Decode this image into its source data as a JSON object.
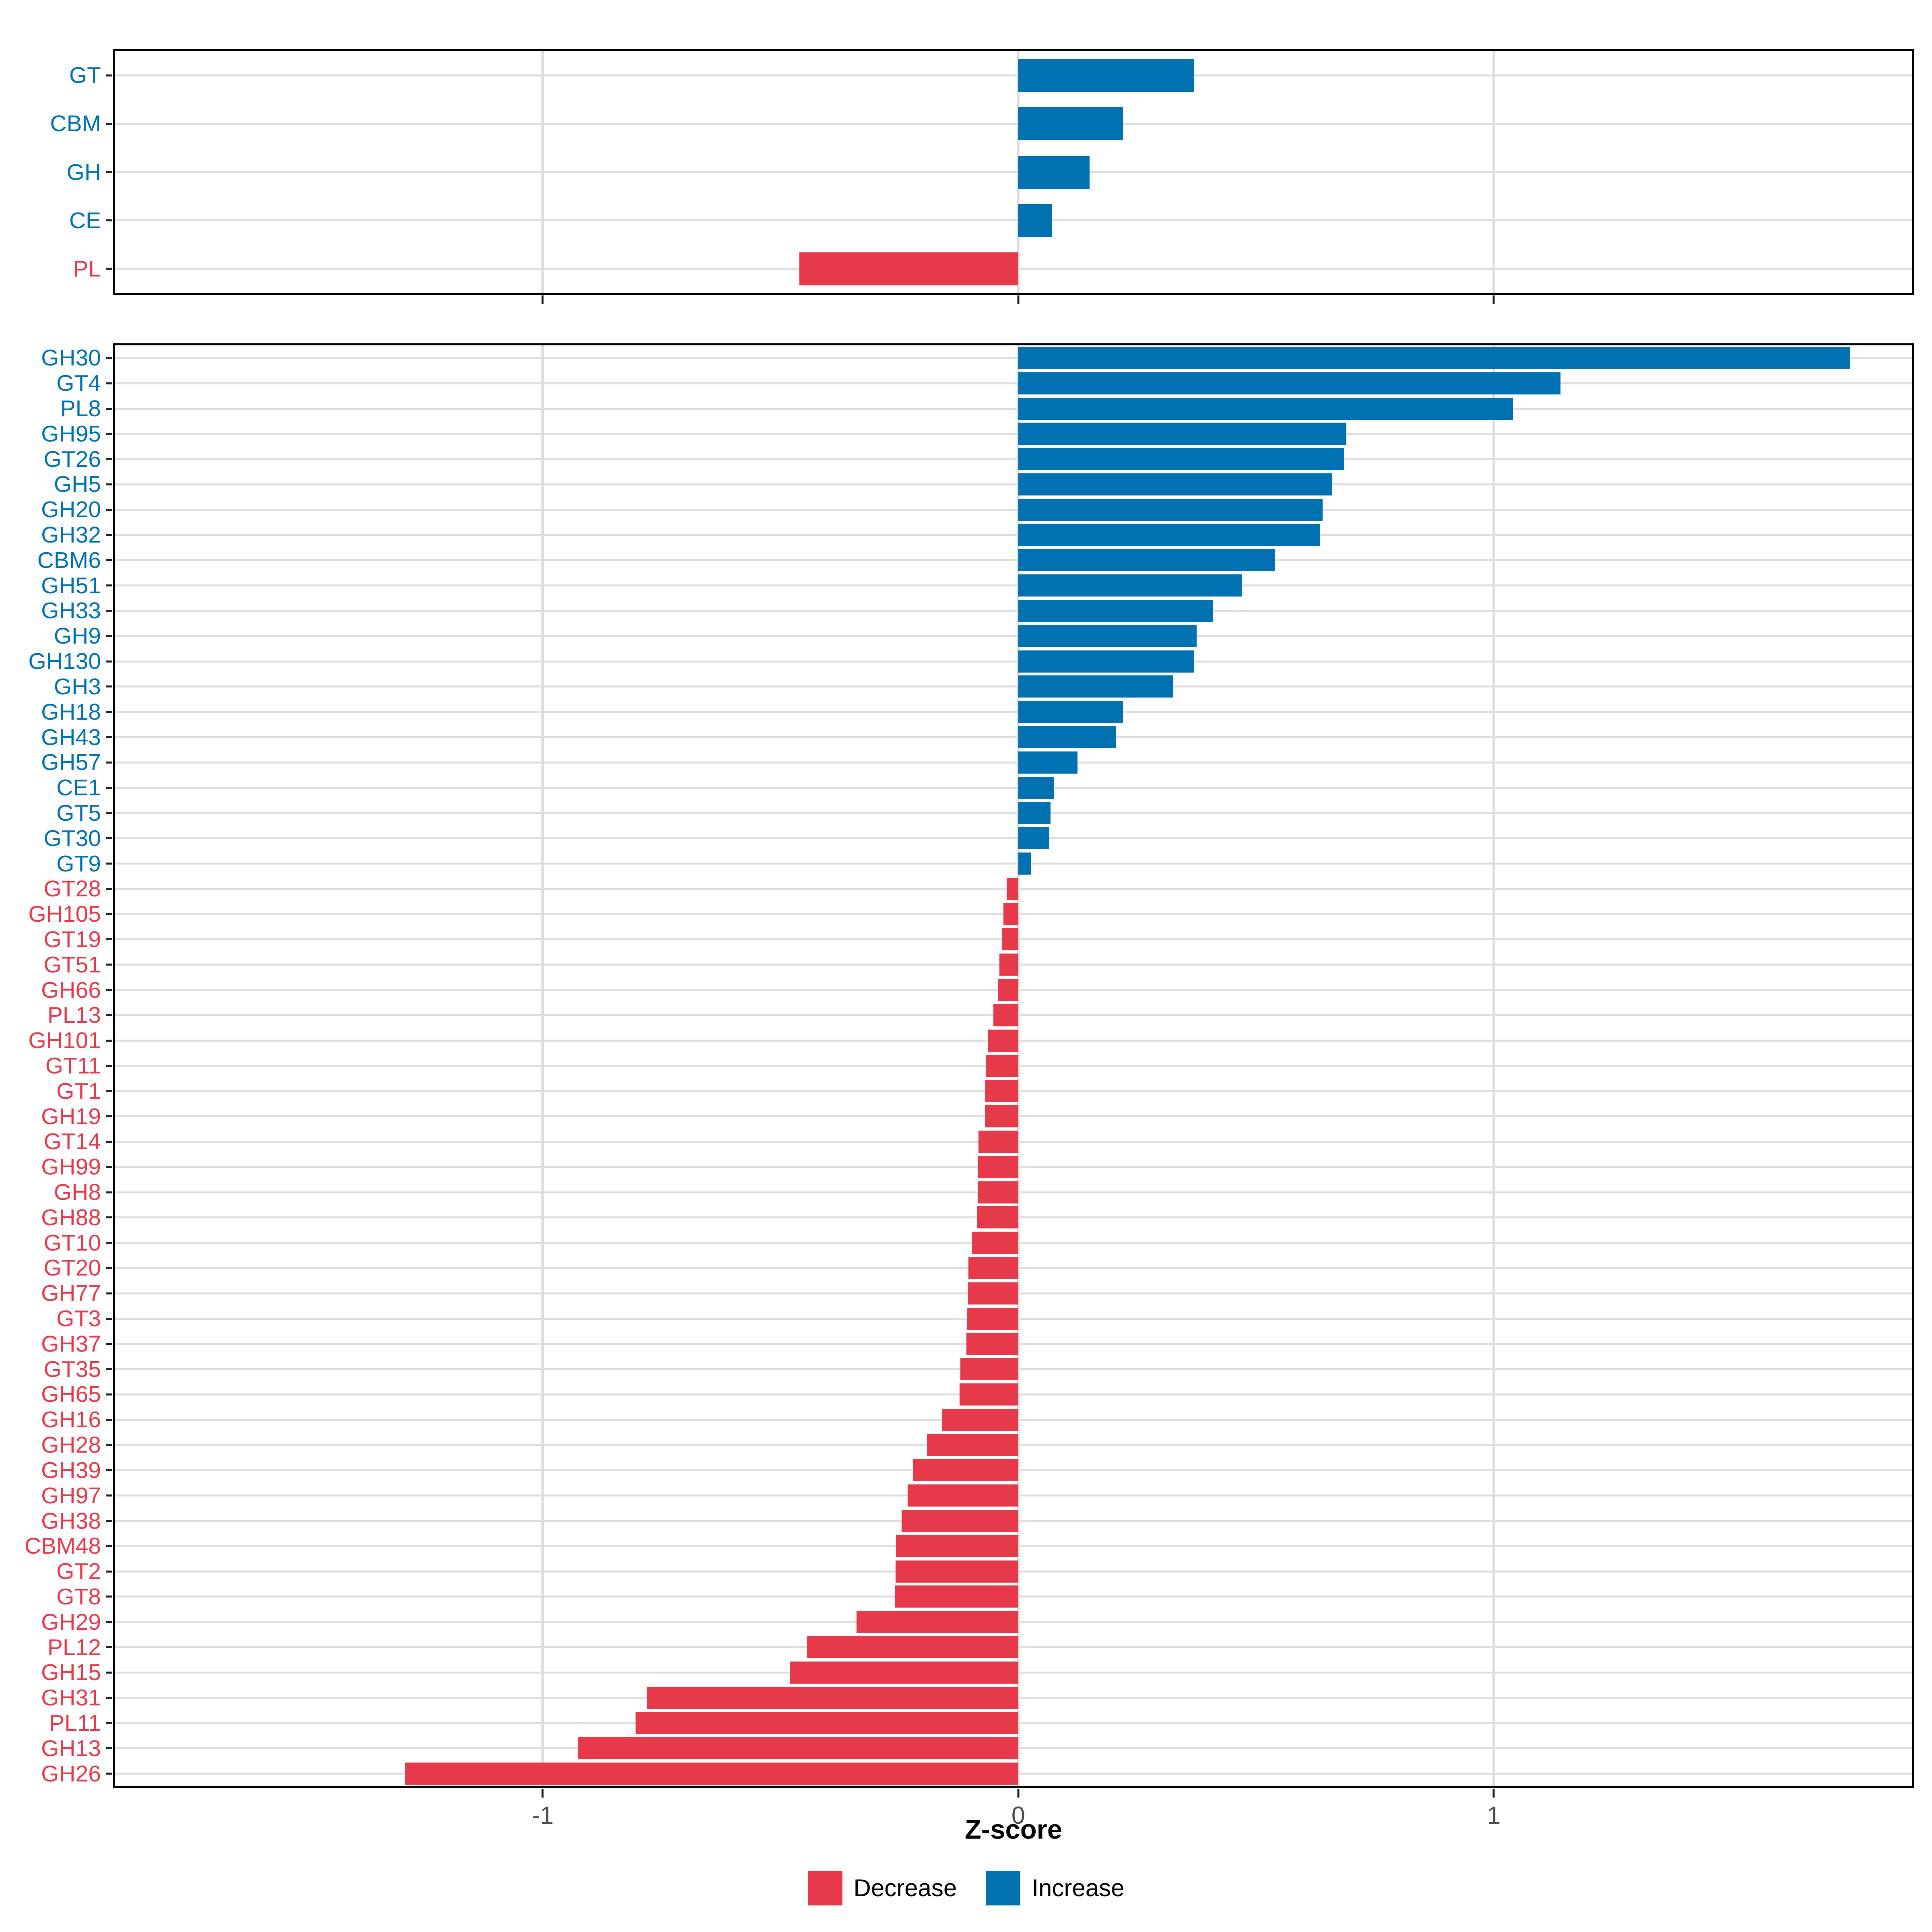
{
  "axis": {
    "xlabel": "Z-score",
    "xlim": [
      -1.9,
      1.88
    ],
    "ticks": [
      {
        "label": "-1",
        "value": -1
      },
      {
        "label": "0",
        "value": 0
      },
      {
        "label": "1",
        "value": 1
      }
    ]
  },
  "legend": {
    "items": [
      {
        "label": "Decrease",
        "color": "#E6394A"
      },
      {
        "label": "Increase",
        "color": "#0072B2"
      }
    ]
  },
  "colors": {
    "increase": "#0072B2",
    "decrease": "#E6394A",
    "grid": "#DEDEDE",
    "panel_border": "#000000",
    "axis_text": "#4D4D4D"
  },
  "chart_data": [
    {
      "type": "bar",
      "orientation": "horizontal",
      "panel": "top-class-panel",
      "categories": [
        "GT",
        "CBM",
        "GH",
        "CE",
        "PL"
      ],
      "values": [
        0.37,
        0.22,
        0.15,
        0.07,
        -0.46
      ],
      "xlabel": "Z-score",
      "xlim": [
        -1.9,
        1.88
      ],
      "grid": true,
      "legend_position": "bottom"
    },
    {
      "type": "bar",
      "orientation": "horizontal",
      "panel": "bottom-family-panel",
      "categories": [
        "GH30",
        "GT4",
        "PL8",
        "GH95",
        "GT26",
        "GH5",
        "GH20",
        "GH32",
        "CBM6",
        "GH51",
        "GH33",
        "GH9",
        "GH130",
        "GH3",
        "GH18",
        "GH43",
        "GH57",
        "CE1",
        "GT5",
        "GT30",
        "GT9",
        "GT28",
        "GH105",
        "GT19",
        "GT51",
        "GH66",
        "PL13",
        "GH101",
        "GT11",
        "GT1",
        "GH19",
        "GT14",
        "GH99",
        "GH8",
        "GH88",
        "GT10",
        "GT20",
        "GH77",
        "GT3",
        "GH37",
        "GT35",
        "GH65",
        "GH16",
        "GH28",
        "GH39",
        "GH97",
        "GH38",
        "CBM48",
        "GT2",
        "GT8",
        "GH29",
        "PL12",
        "GH15",
        "GH31",
        "PL11",
        "GH13",
        "GH26"
      ],
      "values": [
        1.75,
        1.14,
        1.04,
        0.69,
        0.685,
        0.66,
        0.64,
        0.635,
        0.54,
        0.47,
        0.41,
        0.375,
        0.37,
        0.325,
        0.22,
        0.205,
        0.125,
        0.075,
        0.068,
        0.065,
        0.027,
        -0.024,
        -0.031,
        -0.034,
        -0.04,
        -0.043,
        -0.052,
        -0.064,
        -0.068,
        -0.069,
        -0.07,
        -0.084,
        -0.085,
        -0.085,
        -0.086,
        -0.097,
        -0.105,
        -0.106,
        -0.108,
        -0.109,
        -0.122,
        -0.123,
        -0.16,
        -0.192,
        -0.222,
        -0.233,
        -0.245,
        -0.257,
        -0.258,
        -0.26,
        -0.34,
        -0.444,
        -0.48,
        -0.78,
        -0.805,
        -0.926,
        -1.29
      ],
      "xlabel": "Z-score",
      "xlim": [
        -1.9,
        1.88
      ],
      "grid": true,
      "legend_position": "bottom"
    }
  ]
}
